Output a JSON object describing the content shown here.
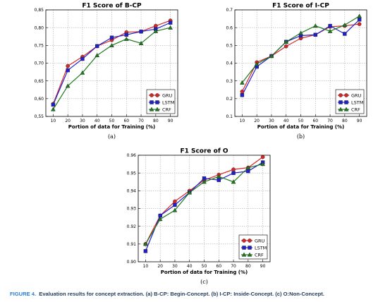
{
  "chart_data": [
    {
      "type": "line",
      "title": "F1 Score of B-CP",
      "xlabel": "Portion of data for Training (%)",
      "ylabel": "",
      "panel_label": "(a)",
      "x": [
        10,
        20,
        30,
        40,
        50,
        60,
        70,
        80,
        90
      ],
      "ylim": [
        0.55,
        0.85
      ],
      "yticks": [
        "0,55",
        "0,60",
        "0,65",
        "0,70",
        "0,75",
        "0,80",
        "0,85"
      ],
      "yticks_values": [
        0.55,
        0.6,
        0.65,
        0.7,
        0.75,
        0.8,
        0.85
      ],
      "grid": true,
      "legend": "lower-right",
      "series": [
        {
          "name": "GRU",
          "color": "#d62728",
          "marker": "circle",
          "values": [
            0.585,
            0.692,
            0.718,
            0.748,
            0.765,
            0.787,
            0.789,
            0.805,
            0.82
          ]
        },
        {
          "name": "LSTM",
          "color": "#1f1fcf",
          "marker": "square",
          "values": [
            0.583,
            0.68,
            0.712,
            0.748,
            0.772,
            0.78,
            0.789,
            0.796,
            0.814
          ]
        },
        {
          "name": "CRF",
          "color": "#1e7a1e",
          "marker": "triangle",
          "values": [
            0.57,
            0.636,
            0.673,
            0.722,
            0.75,
            0.768,
            0.756,
            0.79,
            0.8
          ]
        }
      ]
    },
    {
      "type": "line",
      "title": "F1 Score of I-CP",
      "xlabel": "Portion of data for Training (%)",
      "ylabel": "",
      "panel_label": "(b)",
      "x": [
        10,
        20,
        30,
        40,
        50,
        60,
        70,
        80,
        90
      ],
      "ylim": [
        0.1,
        0.7
      ],
      "yticks": [
        "0.1",
        "0.2",
        "0.3",
        "0.4",
        "0.5",
        "0.6",
        "0.7"
      ],
      "yticks_values": [
        0.1,
        0.2,
        0.3,
        0.4,
        0.5,
        0.6,
        0.7
      ],
      "grid": true,
      "legend": "lower-right",
      "series": [
        {
          "name": "GRU",
          "color": "#d62728",
          "marker": "circle",
          "values": [
            0.24,
            0.405,
            0.44,
            0.495,
            0.54,
            0.56,
            0.605,
            0.61,
            0.62
          ]
        },
        {
          "name": "LSTM",
          "color": "#1f1fcf",
          "marker": "square",
          "values": [
            0.22,
            0.38,
            0.44,
            0.52,
            0.555,
            0.56,
            0.61,
            0.565,
            0.645
          ]
        },
        {
          "name": "CRF",
          "color": "#1e7a1e",
          "marker": "triangle",
          "values": [
            0.29,
            0.395,
            0.44,
            0.52,
            0.57,
            0.61,
            0.58,
            0.615,
            0.665
          ]
        }
      ]
    },
    {
      "type": "line",
      "title": "F1 Score of O",
      "xlabel": "Portion of data for Training (%)",
      "ylabel": "",
      "panel_label": "(c)",
      "x": [
        10,
        20,
        30,
        40,
        50,
        60,
        70,
        80,
        90
      ],
      "ylim": [
        0.9,
        0.96
      ],
      "yticks": [
        "0.90",
        "0.91",
        "0.92",
        "0.93",
        "0.94",
        "0.95",
        "0.96"
      ],
      "yticks_values": [
        0.9,
        0.91,
        0.92,
        0.93,
        0.94,
        0.95,
        0.96
      ],
      "grid": true,
      "legend": "lower-right",
      "series": [
        {
          "name": "GRU",
          "color": "#d62728",
          "marker": "circle",
          "values": [
            0.91,
            0.926,
            0.934,
            0.94,
            0.946,
            0.949,
            0.952,
            0.953,
            0.959
          ]
        },
        {
          "name": "LSTM",
          "color": "#1f1fcf",
          "marker": "square",
          "values": [
            0.906,
            0.926,
            0.932,
            0.939,
            0.947,
            0.946,
            0.95,
            0.951,
            0.956
          ]
        },
        {
          "name": "CRF",
          "color": "#1e7a1e",
          "marker": "triangle",
          "values": [
            0.91,
            0.924,
            0.929,
            0.939,
            0.945,
            0.948,
            0.945,
            0.953,
            0.955
          ]
        }
      ]
    }
  ],
  "caption": {
    "label": "FIGURE 4.",
    "text": "Evaluation results for concept extraction. (a) B-CP: Begin-Concept. (b) I-CP: Inside-Concept. (c) O:Non-Concept."
  }
}
